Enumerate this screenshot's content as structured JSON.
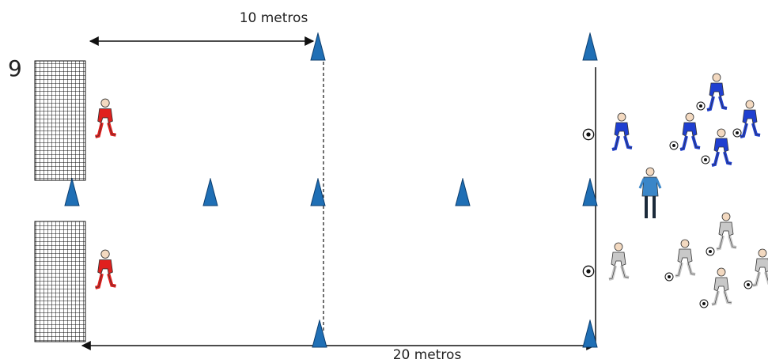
{
  "number": "9",
  "labels": {
    "top": "10 metros",
    "bottom": "20 metros"
  }
}
